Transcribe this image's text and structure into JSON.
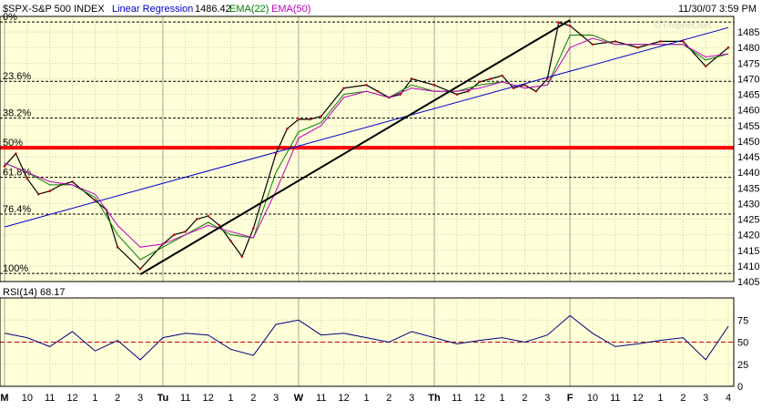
{
  "header": {
    "symbol": "$SPX-S&P 500 INDEX",
    "indicator": "Linear Regression",
    "indicator_value": "1486.42",
    "ema1": "EMA(22)",
    "ema2": "EMA(50)",
    "date": "11/30/07 3:59 PM",
    "watermark": "© Prophet.Net"
  },
  "colors": {
    "background": "#ffffd8",
    "price_bar": "#000000",
    "ema22": "#008000",
    "ema50": "#c000c0",
    "regression": "#0000cc",
    "trendline": "#000000",
    "fib_50": "#ff0000",
    "rsi_line": "#000080",
    "rsi_mid": "#cc0000"
  },
  "rsi_panel": {
    "label": "RSI(14) 68.17"
  },
  "chart_data": [
    {
      "type": "line",
      "title": "$SPX-S&P 500 INDEX",
      "ylim": [
        1405,
        1490
      ],
      "y_ticks": [
        1405,
        1410,
        1415,
        1420,
        1425,
        1430,
        1435,
        1440,
        1445,
        1450,
        1455,
        1460,
        1465,
        1470,
        1475,
        1480,
        1485
      ],
      "x_ticks": [
        "M",
        "10",
        "11",
        "12",
        "1",
        "2",
        "3",
        "Tu",
        "11",
        "12",
        "1",
        "2",
        "3",
        "W",
        "11",
        "12",
        "1",
        "2",
        "3",
        "Th",
        "11",
        "12",
        "1",
        "2",
        "3",
        "F",
        "10",
        "11",
        "12",
        "1",
        "2",
        "3",
        "4"
      ],
      "grid": true,
      "fib_levels": [
        {
          "label": "0%",
          "value": 1488.2
        },
        {
          "label": "23.6%",
          "value": 1469.2
        },
        {
          "label": "38.2%",
          "value": 1457.4
        },
        {
          "label": "50%",
          "value": 1447.9
        },
        {
          "label": "61.8%",
          "value": 1438.4
        },
        {
          "label": "76.4%",
          "value": 1426.6
        },
        {
          "label": "100%",
          "value": 1407.6
        }
      ],
      "series": [
        {
          "name": "$SPX-S&P 500 INDEX",
          "x": [
            0,
            0.5,
            1,
            1.5,
            2,
            2.5,
            3,
            4,
            4.5,
            5,
            6,
            7,
            7.5,
            8,
            8.5,
            9,
            9.5,
            10,
            10.5,
            11,
            12,
            12.5,
            13,
            13.5,
            14,
            15,
            16,
            16.5,
            17,
            17.5,
            18,
            19,
            20,
            20.5,
            21,
            21.5,
            22,
            22.5,
            23,
            23.5,
            24,
            24.5,
            25,
            25.5,
            26,
            27,
            28,
            29,
            30,
            31,
            32
          ],
          "values": [
            1442,
            1446,
            1438,
            1433,
            1434,
            1436,
            1437,
            1431,
            1428,
            1416,
            1409,
            1417,
            1420,
            1421,
            1425,
            1426,
            1423,
            1418,
            1413,
            1422,
            1446,
            1454,
            1457,
            1457,
            1458,
            1467,
            1468,
            1466,
            1464,
            1465,
            1470,
            1468,
            1465,
            1466,
            1469,
            1470,
            1471,
            1467,
            1468,
            1466,
            1470,
            1488,
            1487,
            1484,
            1481,
            1482,
            1480,
            1482,
            1482,
            1474,
            1480
          ]
        },
        {
          "name": "EMA(22)",
          "x": [
            0,
            1,
            2,
            3,
            4,
            5,
            6,
            7,
            8,
            9,
            10,
            11,
            12,
            13,
            14,
            15,
            16,
            17,
            18,
            19,
            20,
            21,
            22,
            23,
            24,
            25,
            26,
            27,
            28,
            29,
            30,
            31,
            32
          ],
          "values": [
            1443,
            1440,
            1436,
            1436,
            1432,
            1420,
            1412,
            1416,
            1420,
            1424,
            1420,
            1419,
            1440,
            1453,
            1456,
            1465,
            1466,
            1464,
            1468,
            1466,
            1466,
            1468,
            1469,
            1467,
            1468,
            1484,
            1484,
            1481,
            1481,
            1481,
            1481,
            1476,
            1478
          ]
        },
        {
          "name": "EMA(50)",
          "x": [
            0,
            1,
            2,
            3,
            4,
            5,
            6,
            7,
            8,
            9,
            10,
            11,
            12,
            13,
            14,
            15,
            16,
            17,
            18,
            19,
            20,
            21,
            22,
            23,
            24,
            25,
            26,
            27,
            28,
            29,
            30,
            31,
            32
          ],
          "values": [
            1443,
            1440,
            1437,
            1436,
            1433,
            1423,
            1416,
            1417,
            1420,
            1423,
            1421,
            1419,
            1434,
            1451,
            1455,
            1464,
            1466,
            1464,
            1467,
            1466,
            1466,
            1467,
            1469,
            1467,
            1468,
            1480,
            1483,
            1481,
            1481,
            1481,
            1481,
            1477,
            1478
          ]
        },
        {
          "name": "Linear Regression",
          "x": [
            0,
            32
          ],
          "values": [
            1422.5,
            1486.4
          ]
        },
        {
          "name": "Trend",
          "x": [
            6,
            25
          ],
          "values": [
            1407.3,
            1488.8
          ]
        }
      ]
    },
    {
      "type": "line",
      "title": "RSI(14) 68.17",
      "ylim": [
        0,
        100
      ],
      "y_ticks": [
        0,
        25,
        50,
        75
      ],
      "reference_line": 50,
      "series": [
        {
          "name": "RSI(14)",
          "x": [
            0,
            1,
            2,
            3,
            4,
            5,
            6,
            7,
            8,
            9,
            10,
            11,
            12,
            13,
            14,
            15,
            16,
            17,
            18,
            19,
            20,
            21,
            22,
            23,
            24,
            25,
            26,
            27,
            28,
            29,
            30,
            31,
            32
          ],
          "values": [
            60,
            55,
            45,
            62,
            40,
            52,
            30,
            55,
            60,
            58,
            42,
            35,
            70,
            75,
            58,
            60,
            55,
            50,
            62,
            55,
            48,
            52,
            55,
            50,
            58,
            80,
            60,
            45,
            48,
            52,
            55,
            30,
            68
          ]
        }
      ]
    }
  ]
}
